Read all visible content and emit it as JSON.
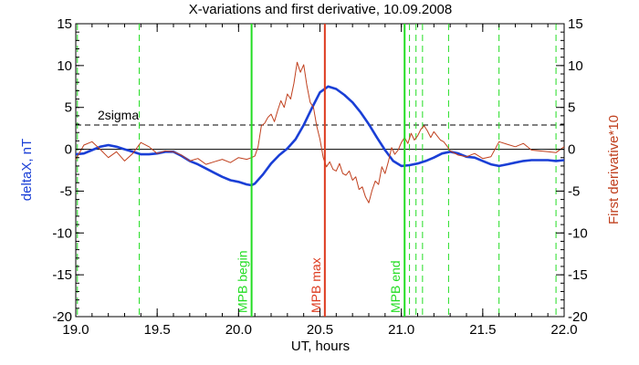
{
  "chart_data": {
    "type": "line",
    "title": "X-variations and first derivative, 10.09.2008",
    "xlabel": "UT, hours",
    "ylabel_left": "deltaX, nT",
    "ylabel_right": "First derivative*10",
    "xlim": [
      19.0,
      22.0
    ],
    "ylim_left": [
      -20,
      15
    ],
    "ylim_right": [
      -20,
      15
    ],
    "x_ticks": [
      19.0,
      19.5,
      20.0,
      20.5,
      21.0,
      21.5,
      22.0
    ],
    "x_tick_labels": [
      "19.0",
      "19.5",
      "20.0",
      "20.5",
      "21.0",
      "21.5",
      "22.0"
    ],
    "y_ticks": [
      15,
      10,
      5,
      0,
      -5,
      -10,
      -15,
      -20
    ],
    "y_tick_labels": [
      "15",
      "10",
      "5",
      "0",
      "-5",
      "-10",
      "-15",
      "-20"
    ],
    "grid": false,
    "colors": {
      "deltaX": "#1a3fd6",
      "derivative": "#c0401e",
      "mpb_boundary": "#22dd22",
      "mpb_max": "#dd3a1e",
      "sigma": "#000000"
    },
    "reference_lines": [
      {
        "label": "2sigma",
        "y": 2.9,
        "style": "dashed"
      },
      {
        "label": "",
        "y": 0,
        "style": "solid"
      }
    ],
    "vertical_markers": [
      {
        "label": "MPB begin",
        "x": 20.08,
        "style": "solid",
        "color_key": "mpb_boundary"
      },
      {
        "label": "MPB max",
        "x": 20.53,
        "style": "solid",
        "color_key": "mpb_max"
      },
      {
        "label": "MPB end",
        "x": 21.02,
        "style": "solid",
        "color_key": "mpb_boundary"
      }
    ],
    "dashed_markers_x": [
      19.01,
      19.39,
      21.05,
      21.09,
      21.13,
      21.29,
      21.6,
      21.95
    ],
    "series": [
      {
        "axis": "left",
        "color_key": "deltaX",
        "x": [
          19.0,
          19.05,
          19.1,
          19.15,
          19.2,
          19.25,
          19.3,
          19.35,
          19.4,
          19.45,
          19.5,
          19.55,
          19.6,
          19.65,
          19.7,
          19.75,
          19.8,
          19.85,
          19.9,
          19.95,
          20.0,
          20.05,
          20.08,
          20.1,
          20.15,
          20.2,
          20.25,
          20.3,
          20.35,
          20.4,
          20.45,
          20.5,
          20.55,
          20.6,
          20.65,
          20.7,
          20.75,
          20.8,
          20.85,
          20.9,
          20.95,
          21.0,
          21.05,
          21.1,
          21.15,
          21.2,
          21.25,
          21.3,
          21.35,
          21.4,
          21.45,
          21.5,
          21.55,
          21.6,
          21.65,
          21.7,
          21.75,
          21.8,
          21.85,
          21.9,
          21.95,
          22.0
        ],
        "y": [
          -0.6,
          -0.5,
          -0.1,
          0.3,
          0.5,
          0.3,
          0.0,
          -0.3,
          -0.6,
          -0.6,
          -0.5,
          -0.3,
          -0.3,
          -0.8,
          -1.4,
          -1.8,
          -2.3,
          -2.8,
          -3.3,
          -3.7,
          -3.9,
          -4.2,
          -4.3,
          -4.1,
          -3.0,
          -1.7,
          -0.7,
          0.1,
          1.2,
          2.9,
          4.9,
          6.8,
          7.5,
          7.2,
          6.5,
          5.6,
          4.4,
          3.0,
          1.4,
          -0.1,
          -1.4,
          -2.0,
          -1.9,
          -1.7,
          -1.4,
          -1.0,
          -0.5,
          -0.3,
          -0.5,
          -0.9,
          -1.0,
          -1.4,
          -1.8,
          -2.0,
          -1.8,
          -1.6,
          -1.4,
          -1.3,
          -1.3,
          -1.3,
          -1.4,
          -1.3
        ]
      },
      {
        "axis": "right",
        "color_key": "derivative",
        "x": [
          19.0,
          19.05,
          19.1,
          19.15,
          19.2,
          19.25,
          19.3,
          19.35,
          19.4,
          19.45,
          19.5,
          19.55,
          19.6,
          19.65,
          19.7,
          19.75,
          19.8,
          19.85,
          19.9,
          19.95,
          20.0,
          20.05,
          20.08,
          20.1,
          20.12,
          20.14,
          20.16,
          20.18,
          20.2,
          20.22,
          20.24,
          20.26,
          20.28,
          20.3,
          20.32,
          20.34,
          20.36,
          20.38,
          20.4,
          20.42,
          20.44,
          20.46,
          20.48,
          20.5,
          20.52,
          20.54,
          20.56,
          20.58,
          20.6,
          20.62,
          20.64,
          20.66,
          20.68,
          20.7,
          20.72,
          20.74,
          20.76,
          20.78,
          20.8,
          20.82,
          20.84,
          20.86,
          20.88,
          20.9,
          20.92,
          20.94,
          20.96,
          20.98,
          21.0,
          21.02,
          21.04,
          21.06,
          21.08,
          21.1,
          21.12,
          21.14,
          21.16,
          21.18,
          21.2,
          21.22,
          21.24,
          21.26,
          21.28,
          21.3,
          21.35,
          21.4,
          21.45,
          21.5,
          21.55,
          21.6,
          21.65,
          21.7,
          21.75,
          21.8,
          21.85,
          21.9,
          21.95,
          22.0
        ],
        "y": [
          -1.2,
          0.5,
          0.9,
          0.0,
          -1.0,
          -0.3,
          -1.4,
          -0.5,
          0.8,
          0.3,
          -0.5,
          -0.2,
          -0.3,
          -0.7,
          -1.4,
          -1.1,
          -1.8,
          -1.5,
          -1.2,
          -1.6,
          -1.0,
          -1.2,
          -1.0,
          -0.8,
          0.3,
          2.8,
          3.1,
          3.8,
          4.2,
          3.3,
          4.6,
          5.8,
          5.0,
          6.6,
          6.0,
          7.9,
          10.4,
          9.2,
          10.1,
          7.6,
          5.6,
          5.0,
          2.8,
          1.2,
          -1.0,
          -2.1,
          -1.5,
          -2.4,
          -2.6,
          -1.7,
          -2.9,
          -3.1,
          -2.6,
          -3.7,
          -3.3,
          -4.8,
          -4.5,
          -5.7,
          -6.4,
          -4.9,
          -3.8,
          -4.2,
          -2.1,
          -2.9,
          -1.5,
          0.2,
          -0.6,
          -0.1,
          0.8,
          1.4,
          0.7,
          1.9,
          1.1,
          1.6,
          2.4,
          2.8,
          2.2,
          1.4,
          2.1,
          1.6,
          1.1,
          0.9,
          0.4,
          -0.2,
          -0.7,
          -0.9,
          -0.5,
          -1.1,
          -0.9,
          0.9,
          0.6,
          0.3,
          0.7,
          -0.1,
          -0.2,
          -0.3,
          -0.4,
          0.3
        ]
      }
    ]
  }
}
